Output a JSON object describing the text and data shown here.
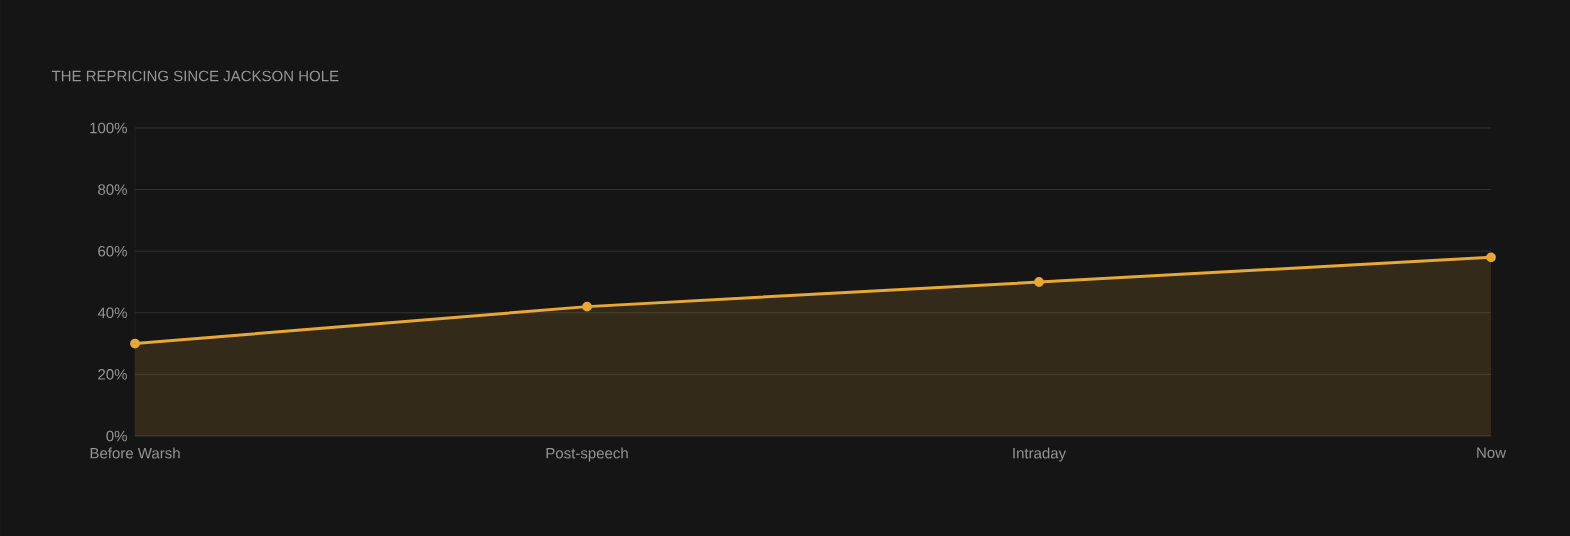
{
  "chart_data": {
    "type": "area",
    "title": "THE REPRICING SINCE JACKSON HOLE",
    "categories": [
      "Before Warsh",
      "Post-speech",
      "Intraday",
      "Now"
    ],
    "series": [
      {
        "color": "#e8a838",
        "values": [
          30,
          42,
          50,
          58
        ]
      }
    ],
    "ylim": [
      0,
      100
    ],
    "yticks": [
      {
        "value": 0,
        "label": "0%"
      },
      {
        "value": 20,
        "label": "20%"
      },
      {
        "value": 40,
        "label": "40%"
      },
      {
        "value": 60,
        "label": "60%"
      },
      {
        "value": 80,
        "label": "80%"
      },
      {
        "value": 100,
        "label": "100%"
      }
    ],
    "grid": "y",
    "marker": "circle",
    "line_style": "solid"
  }
}
